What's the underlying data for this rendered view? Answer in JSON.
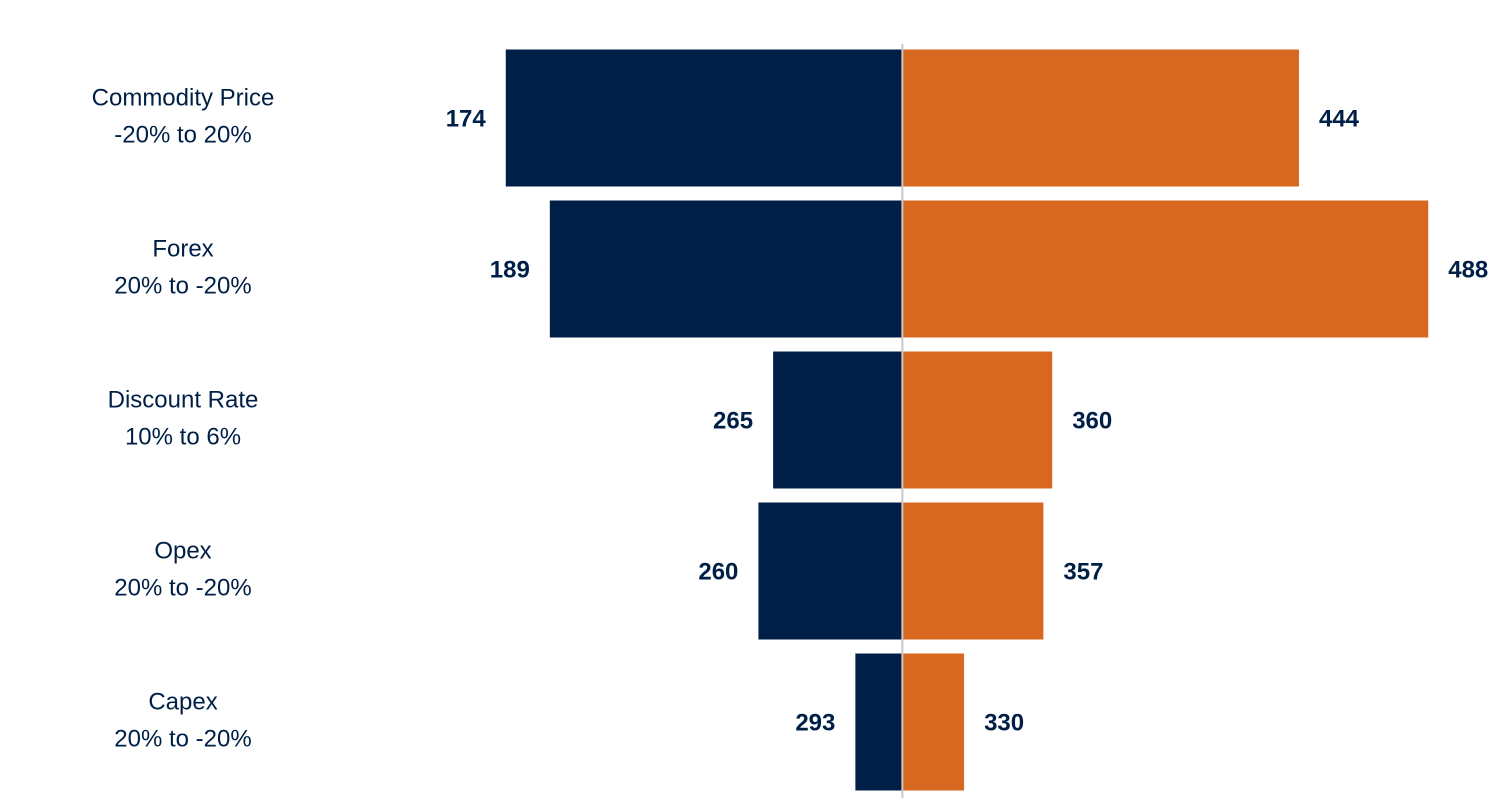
{
  "chart_data": {
    "type": "tornado",
    "categories": [
      "Commodity Price",
      "Forex",
      "Discount Rate",
      "Opex",
      "Capex"
    ],
    "ranges": [
      "-20% to 20%",
      "20% to -20%",
      "10% to 6%",
      "20% to -20%",
      "20% to -20%"
    ],
    "base": 309,
    "xlim": [
      138,
      492
    ],
    "series": [
      {
        "color": "#001f47",
        "values": [
          174,
          189,
          265,
          260,
          293
        ]
      },
      {
        "color": "#d86720",
        "values": [
          444,
          488,
          360,
          357,
          330
        ]
      }
    ]
  }
}
